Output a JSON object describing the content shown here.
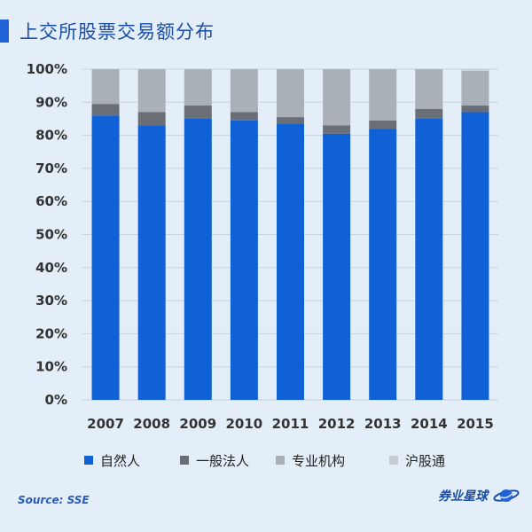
{
  "title": "上交所股票交易额分布",
  "source": "Source: SSE",
  "brand": "券业星球",
  "brand_icon": "planet-icon",
  "colors": {
    "background": "#e4eef8",
    "grid": "#c8d2dc",
    "accent": "#1f63d6"
  },
  "chart_data": {
    "type": "bar",
    "stacked": true,
    "categories": [
      "2007",
      "2008",
      "2009",
      "2010",
      "2011",
      "2012",
      "2013",
      "2014",
      "2015"
    ],
    "series": [
      {
        "name": "自然人",
        "color": "#1060d6",
        "values": [
          86,
          83,
          85,
          84.5,
          83.5,
          80.5,
          82,
          85,
          87
        ]
      },
      {
        "name": "一般法人",
        "color": "#6a6f77",
        "values": [
          3.5,
          4,
          4,
          2.5,
          2,
          2.5,
          2.5,
          3,
          2
        ]
      },
      {
        "name": "专业机构",
        "color": "#a9b0b8",
        "values": [
          10.5,
          13,
          11,
          13,
          14.5,
          17,
          15.5,
          12,
          10.5
        ]
      },
      {
        "name": "沪股通",
        "color": "#c7cdd4",
        "values": [
          0,
          0,
          0,
          0,
          0,
          0,
          0,
          0,
          0.5
        ]
      }
    ],
    "ylim": [
      0,
      100
    ],
    "yticks": [
      "0%",
      "10%",
      "20%",
      "30%",
      "40%",
      "50%",
      "60%",
      "70%",
      "80%",
      "90%",
      "100%"
    ],
    "grid": true,
    "legend_position": "bottom"
  }
}
